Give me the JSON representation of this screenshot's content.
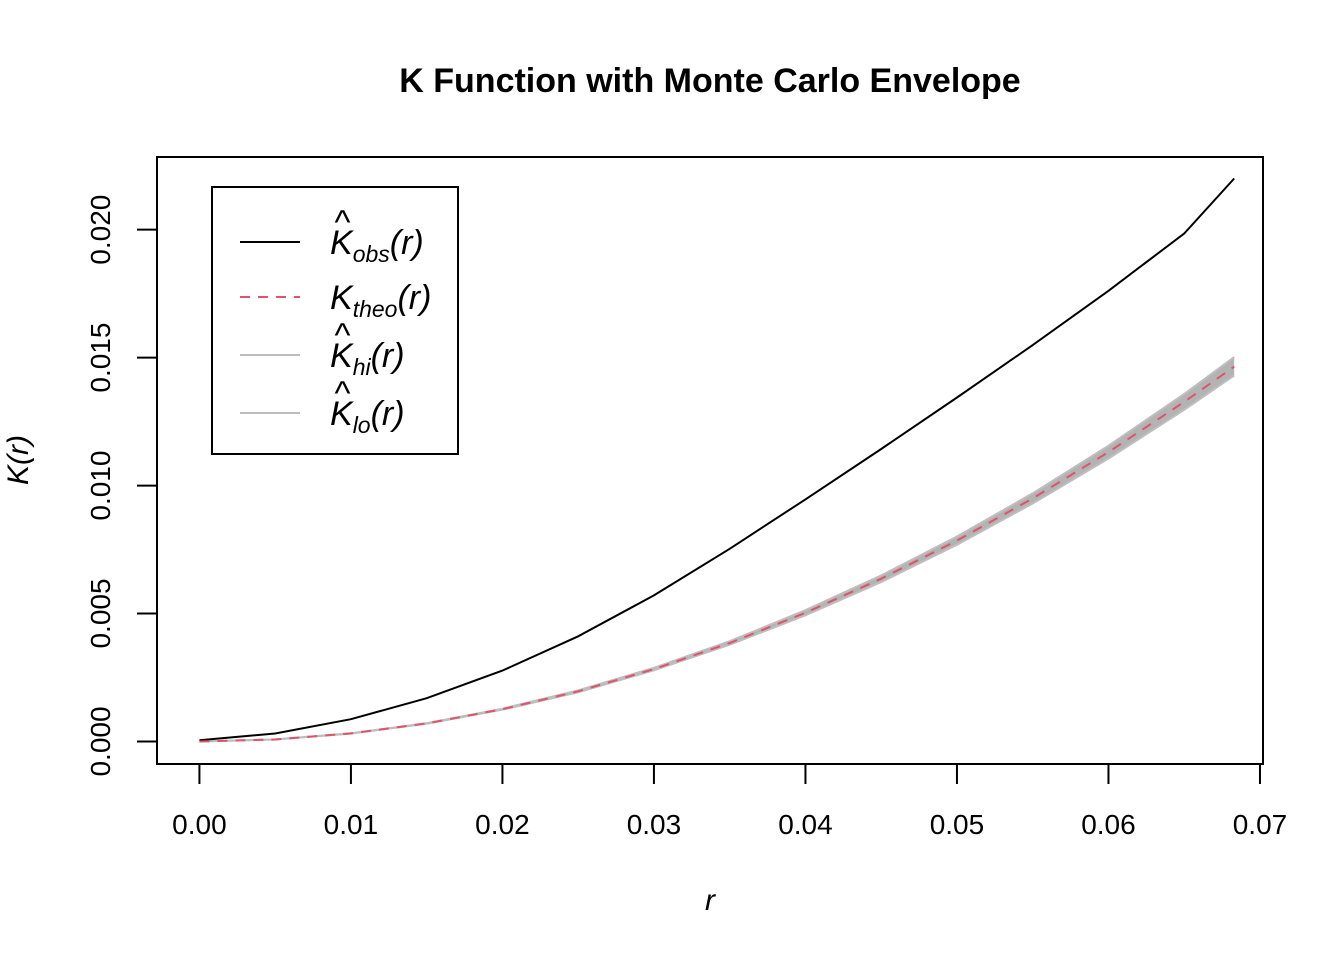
{
  "chart_data": {
    "type": "line",
    "title": "K Function with Monte Carlo Envelope",
    "xlabel": "r",
    "ylabel": "K(r)",
    "xlim": [
      -0.0028,
      0.0702
    ],
    "ylim": [
      -0.00088,
      0.02284
    ],
    "x_ticks": [
      0.0,
      0.01,
      0.02,
      0.03,
      0.04,
      0.05,
      0.06,
      0.07
    ],
    "x_tick_labels": [
      "0.00",
      "0.01",
      "0.02",
      "0.03",
      "0.04",
      "0.05",
      "0.06",
      "0.07"
    ],
    "y_ticks": [
      0.0,
      0.005,
      0.01,
      0.015,
      0.02
    ],
    "y_tick_labels": [
      "0.000",
      "0.005",
      "0.010",
      "0.015",
      "0.020"
    ],
    "grid": false,
    "legend_position": "top-left",
    "x": [
      0.0,
      0.005,
      0.01,
      0.015,
      0.02,
      0.025,
      0.03,
      0.035,
      0.04,
      0.045,
      0.05,
      0.055,
      0.06,
      0.065,
      0.0683
    ],
    "series": [
      {
        "name": "obs",
        "style": "solid",
        "color": "#000000",
        "values": [
          5e-05,
          0.00031,
          0.00087,
          0.00169,
          0.00277,
          0.00411,
          0.00571,
          0.00753,
          0.00946,
          0.01143,
          0.01344,
          0.01549,
          0.01761,
          0.01985,
          0.022
        ]
      },
      {
        "name": "theo",
        "style": "dashed",
        "color": "#DF536B",
        "values": [
          0.0,
          7.9e-05,
          0.000314,
          0.000707,
          0.00126,
          0.00196,
          0.00283,
          0.00385,
          0.00503,
          0.00636,
          0.00785,
          0.0095,
          0.01131,
          0.01327,
          0.01465
        ]
      },
      {
        "name": "hi",
        "style": "solid",
        "color": "#BEBEBE",
        "values": [
          0.0,
          8.1e-05,
          0.00032,
          0.00072,
          0.00128,
          0.002,
          0.00288,
          0.00392,
          0.00513,
          0.00649,
          0.00801,
          0.0097,
          0.01156,
          0.01358,
          0.01502
        ]
      },
      {
        "name": "lo",
        "style": "solid",
        "color": "#BEBEBE",
        "values": [
          0.0,
          7.7e-05,
          0.000308,
          0.000694,
          0.00124,
          0.00192,
          0.00278,
          0.00378,
          0.00493,
          0.00623,
          0.00769,
          0.0093,
          0.01106,
          0.01296,
          0.0143
        ]
      }
    ],
    "legend": [
      {
        "main": "K",
        "hat": true,
        "sub": "obs",
        "suffix": "(r)",
        "color": "#000000",
        "style": "solid"
      },
      {
        "main": "K",
        "hat": false,
        "sub": "theo",
        "suffix": "(r)",
        "color": "#DF536B",
        "style": "dashed"
      },
      {
        "main": "K",
        "hat": true,
        "sub": "hi",
        "suffix": "(r)",
        "color": "#BEBEBE",
        "style": "solid"
      },
      {
        "main": "K",
        "hat": true,
        "sub": "lo",
        "suffix": "(r)",
        "color": "#BEBEBE",
        "style": "solid"
      }
    ],
    "envelope_color": "#B3B3B3"
  }
}
